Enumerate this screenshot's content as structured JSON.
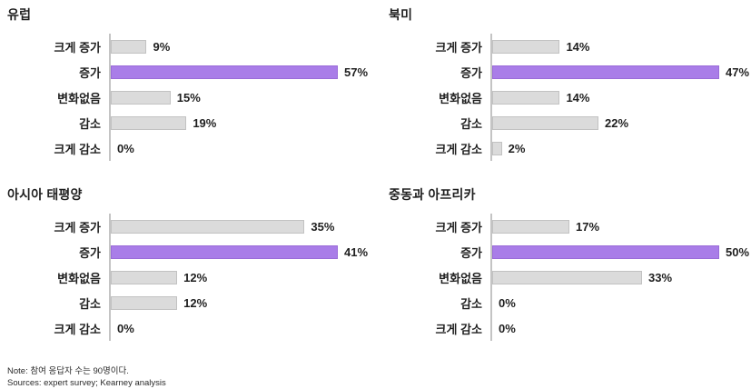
{
  "colors": {
    "background": "#ffffff",
    "text": "#1f1f1f",
    "bar_default": "#dbdbdb",
    "bar_default_border": "#c2c2c2",
    "bar_highlight": "#a97de8",
    "bar_highlight_border": "#9a6cd8",
    "axis_line": "#c4c4c4"
  },
  "footer": {
    "note": "Note: 참여 응답자 수는 90명이다.",
    "sources": "Sources: expert survey; Kearney analysis"
  },
  "chart_data": [
    {
      "type": "bar",
      "orientation": "horizontal",
      "title": "유럽",
      "categories": [
        "크게 증가",
        "증가",
        "변화없음",
        "감소",
        "크게 감소"
      ],
      "values": [
        9,
        57,
        15,
        19,
        0
      ],
      "value_labels": [
        "9%",
        "57%",
        "15%",
        "19%",
        "0%"
      ],
      "highlight_index": 1,
      "normalization": "per-chart-max",
      "grid": false,
      "legend": false
    },
    {
      "type": "bar",
      "orientation": "horizontal",
      "title": "북미",
      "categories": [
        "크게 증가",
        "증가",
        "변화없음",
        "감소",
        "크게 감소"
      ],
      "values": [
        14,
        47,
        14,
        22,
        2
      ],
      "value_labels": [
        "14%",
        "47%",
        "14%",
        "22%",
        "2%"
      ],
      "highlight_index": 1,
      "normalization": "per-chart-max",
      "grid": false,
      "legend": false
    },
    {
      "type": "bar",
      "orientation": "horizontal",
      "title": "아시아 태평양",
      "categories": [
        "크게 증가",
        "증가",
        "변화없음",
        "감소",
        "크게 감소"
      ],
      "values": [
        35,
        41,
        12,
        12,
        0
      ],
      "value_labels": [
        "35%",
        "41%",
        "12%",
        "12%",
        "0%"
      ],
      "highlight_index": 1,
      "normalization": "per-chart-max",
      "grid": false,
      "legend": false
    },
    {
      "type": "bar",
      "orientation": "horizontal",
      "title": "중동과 아프리카",
      "categories": [
        "크게 증가",
        "증가",
        "변화없음",
        "감소",
        "크게 감소"
      ],
      "values": [
        17,
        50,
        33,
        0,
        0
      ],
      "value_labels": [
        "17%",
        "50%",
        "33%",
        "0%",
        "0%"
      ],
      "highlight_index": 1,
      "normalization": "per-chart-max",
      "grid": false,
      "legend": false
    }
  ]
}
